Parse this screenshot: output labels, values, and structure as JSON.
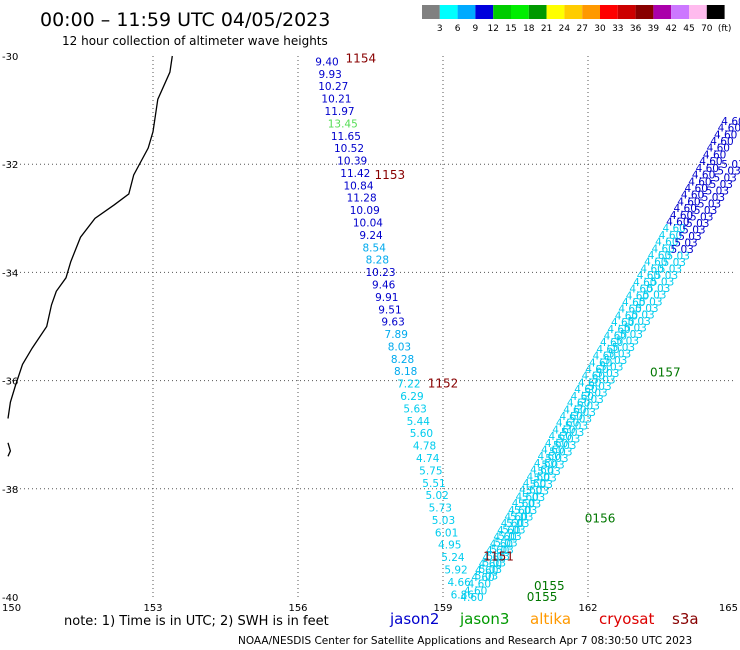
{
  "title": "00:00 – 11:59 UTC 04/05/2023",
  "subtitle": "12 hour collection of altimeter wave heights",
  "note": "note:  1) Time is in UTC;  2) SWH is in feet",
  "credit": "NOAA/NESDIS Center for Satellite Applications and Research    Apr  7 08:30:50 UTC 2023",
  "map": {
    "lat_range": [
      -40,
      -30
    ],
    "lon_range": [
      150,
      165
    ],
    "lat_ticks": [
      -30,
      -32,
      -34,
      -36,
      -38,
      -40
    ],
    "lat_tick_labels": [
      "-30",
      "-32",
      "-34",
      "-36",
      "-38",
      "-40"
    ],
    "lon_ticks": [
      150,
      153,
      156,
      159,
      162,
      165
    ],
    "lon_tick_labels": [
      "150",
      "153",
      "156",
      "159",
      "162",
      "165"
    ]
  },
  "color_scale": {
    "labels": [
      "3",
      "6",
      "9",
      "12",
      "15",
      "18",
      "21",
      "24",
      "27",
      "30",
      "33",
      "36",
      "39",
      "42",
      "45",
      "70",
      "(ft)"
    ],
    "colors": [
      "#808080",
      "#00ffff",
      "#00aaff",
      "#0000dd",
      "#00cc00",
      "#00ee00",
      "#009900",
      "#ffff00",
      "#ffcc00",
      "#ff9900",
      "#ff0000",
      "#cc0000",
      "#880000",
      "#aa00aa",
      "#cc77ff",
      "#ffbbee",
      "#000000"
    ]
  },
  "satellites": [
    {
      "name": "jason2",
      "color": "#0000cc"
    },
    {
      "name": "jason3",
      "color": "#009900"
    },
    {
      "name": "altika",
      "color": "#ff9900"
    },
    {
      "name": "cryosat",
      "color": "#dd0000"
    },
    {
      "name": "s3a",
      "color": "#880000"
    }
  ],
  "track_a": {
    "start": {
      "lat": -30.1,
      "lon": 156.6
    },
    "end": {
      "lat": -39.95,
      "lon": 159.4
    },
    "values": [
      "9.40",
      "9.93",
      "10.27",
      "10.21",
      "11.97",
      "13.45",
      "11.65",
      "10.52",
      "10.39",
      "11.42",
      "10.84",
      "11.28",
      "10.09",
      "10.04",
      "9.24",
      "8.54",
      "8.28",
      "10.23",
      "9.46",
      "9.91",
      "9.51",
      "9.63",
      "7.89",
      "8.03",
      "8.28",
      "8.18",
      "7.22",
      "6.29",
      "5.63",
      "5.44",
      "5.60",
      "4.78",
      "4.74",
      "5.75",
      "5.51",
      "5.02",
      "5.73",
      "5.03",
      "6.01",
      "4.95",
      "5.24",
      "5.92",
      "4.66",
      "6.86"
    ],
    "colors": [
      "#0000cc",
      "#0000cc",
      "#0000cc",
      "#0000cc",
      "#0000cc",
      "#55dd55",
      "#0000cc",
      "#0000cc",
      "#0000cc",
      "#0000cc",
      "#0000cc",
      "#0000cc",
      "#0000cc",
      "#0000cc",
      "#0000cc",
      "#00aaee",
      "#00aaee",
      "#0000cc",
      "#0000cc",
      "#0000cc",
      "#0000cc",
      "#0000cc",
      "#00aaee",
      "#00aaee",
      "#00aaee",
      "#00aaee",
      "#00ccee",
      "#00ccee",
      "#00ccee",
      "#00ccee",
      "#00ccee",
      "#00ccee",
      "#00ccee",
      "#00ccee",
      "#00ccee",
      "#00ccee",
      "#00ccee",
      "#00ccee",
      "#00ccee",
      "#00ccee",
      "#00ccee",
      "#00ccee",
      "#00ccee",
      "#00ccee"
    ]
  },
  "track_b": {
    "start": {
      "lat": -40.0,
      "lon": 159.6
    },
    "end": {
      "lat": -31.2,
      "lon": 165.0
    },
    "count": 72,
    "color_main": "#00ccee",
    "color_top": "#0000cc",
    "label": "4.60"
  },
  "track_c": {
    "start": {
      "lat": -39.6,
      "lon": 159.9
    },
    "end": {
      "lat": -32.0,
      "lon": 165.0
    },
    "count": 64,
    "color_main": "#00ccee",
    "color_top": "#0000cc",
    "label": "5.03"
  },
  "pass_labels": [
    {
      "text": "1154",
      "lat": -30.05,
      "lon": 157.3,
      "color": "#880000"
    },
    {
      "text": "1153",
      "lat": -32.2,
      "lon": 157.9,
      "color": "#880000"
    },
    {
      "text": "1152",
      "lat": -36.05,
      "lon": 159.0,
      "color": "#880000"
    },
    {
      "text": "1151",
      "lat": -39.25,
      "lon": 160.15,
      "color": "#880000"
    },
    {
      "text": "0157",
      "lat": -35.85,
      "lon": 163.6,
      "color": "#007700"
    },
    {
      "text": "0156",
      "lat": -38.55,
      "lon": 162.25,
      "color": "#007700"
    },
    {
      "text": "0155",
      "lat": -39.8,
      "lon": 161.2,
      "color": "#007700"
    },
    {
      "text": "0155",
      "lat": -40.0,
      "lon": 161.05,
      "color": "#007700"
    }
  ],
  "coast": [
    [
      153.4,
      -30.0
    ],
    [
      153.35,
      -30.3
    ],
    [
      153.1,
      -30.8
    ],
    [
      153.0,
      -31.4
    ],
    [
      152.9,
      -31.7
    ],
    [
      152.6,
      -32.2
    ],
    [
      152.5,
      -32.55
    ],
    [
      152.2,
      -32.75
    ],
    [
      151.8,
      -33.0
    ],
    [
      151.5,
      -33.35
    ],
    [
      151.3,
      -33.8
    ],
    [
      151.2,
      -34.1
    ],
    [
      151.0,
      -34.35
    ],
    [
      150.9,
      -34.6
    ],
    [
      150.8,
      -35.0
    ],
    [
      150.5,
      -35.4
    ],
    [
      150.3,
      -35.7
    ],
    [
      150.15,
      -36.1
    ],
    [
      150.05,
      -36.4
    ],
    [
      150.0,
      -36.7
    ]
  ],
  "coast_south": [
    [
      150.0,
      -37.15
    ],
    [
      150.05,
      -37.3
    ],
    [
      150.0,
      -37.4
    ]
  ]
}
